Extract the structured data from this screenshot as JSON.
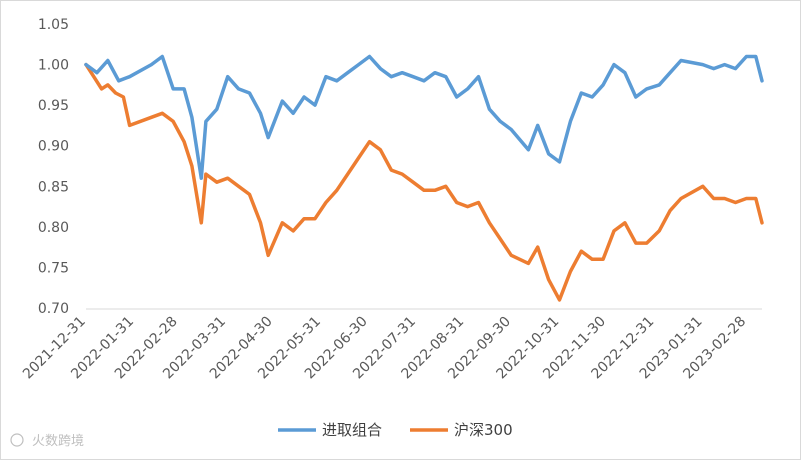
{
  "chart_data": {
    "type": "line",
    "title": "",
    "xlabel": "",
    "ylabel": "",
    "ylim": [
      0.7,
      1.05
    ],
    "y_ticks": [
      "1.05",
      "1.00",
      "0.95",
      "0.90",
      "0.85",
      "0.80",
      "0.75",
      "0.70"
    ],
    "x_ticks": [
      "2021-12-31",
      "2022-01-31",
      "2022-02-28",
      "2022-03-31",
      "2022-04-30",
      "2022-05-31",
      "2022-06-30",
      "2022-07-31",
      "2022-08-31",
      "2022-09-30",
      "2022-10-31",
      "2022-11-30",
      "2022-12-31",
      "2023-01-31",
      "2023-02-28"
    ],
    "x_range": [
      "2021-12-31",
      "2023-03-10"
    ],
    "grid": false,
    "legend_position": "bottom",
    "series": [
      {
        "name": "进取组合",
        "color": "#5B9BD5",
        "points": [
          [
            "2021-12-31",
            1.0
          ],
          [
            "2022-01-07",
            0.99
          ],
          [
            "2022-01-14",
            1.005
          ],
          [
            "2022-01-21",
            0.98
          ],
          [
            "2022-01-28",
            0.985
          ],
          [
            "2022-02-11",
            1.0
          ],
          [
            "2022-02-18",
            1.01
          ],
          [
            "2022-02-25",
            0.97
          ],
          [
            "2022-03-04",
            0.97
          ],
          [
            "2022-03-09",
            0.935
          ],
          [
            "2022-03-15",
            0.86
          ],
          [
            "2022-03-18",
            0.93
          ],
          [
            "2022-03-25",
            0.945
          ],
          [
            "2022-04-01",
            0.985
          ],
          [
            "2022-04-08",
            0.97
          ],
          [
            "2022-04-15",
            0.965
          ],
          [
            "2022-04-22",
            0.94
          ],
          [
            "2022-04-27",
            0.91
          ],
          [
            "2022-05-06",
            0.955
          ],
          [
            "2022-05-13",
            0.94
          ],
          [
            "2022-05-20",
            0.96
          ],
          [
            "2022-05-27",
            0.95
          ],
          [
            "2022-06-03",
            0.985
          ],
          [
            "2022-06-10",
            0.98
          ],
          [
            "2022-06-17",
            0.99
          ],
          [
            "2022-06-24",
            1.0
          ],
          [
            "2022-07-01",
            1.01
          ],
          [
            "2022-07-08",
            0.995
          ],
          [
            "2022-07-15",
            0.985
          ],
          [
            "2022-07-22",
            0.99
          ],
          [
            "2022-07-29",
            0.985
          ],
          [
            "2022-08-05",
            0.98
          ],
          [
            "2022-08-12",
            0.99
          ],
          [
            "2022-08-19",
            0.985
          ],
          [
            "2022-08-26",
            0.96
          ],
          [
            "2022-09-02",
            0.97
          ],
          [
            "2022-09-09",
            0.985
          ],
          [
            "2022-09-16",
            0.945
          ],
          [
            "2022-09-23",
            0.93
          ],
          [
            "2022-09-30",
            0.92
          ],
          [
            "2022-10-11",
            0.895
          ],
          [
            "2022-10-17",
            0.925
          ],
          [
            "2022-10-24",
            0.89
          ],
          [
            "2022-10-31",
            0.88
          ],
          [
            "2022-11-07",
            0.93
          ],
          [
            "2022-11-14",
            0.965
          ],
          [
            "2022-11-21",
            0.96
          ],
          [
            "2022-11-28",
            0.975
          ],
          [
            "2022-12-05",
            1.0
          ],
          [
            "2022-12-12",
            0.99
          ],
          [
            "2022-12-19",
            0.96
          ],
          [
            "2022-12-26",
            0.97
          ],
          [
            "2023-01-03",
            0.975
          ],
          [
            "2023-01-10",
            0.99
          ],
          [
            "2023-01-17",
            1.005
          ],
          [
            "2023-01-31",
            1.0
          ],
          [
            "2023-02-07",
            0.995
          ],
          [
            "2023-02-14",
            1.0
          ],
          [
            "2023-02-21",
            0.995
          ],
          [
            "2023-02-28",
            1.01
          ],
          [
            "2023-03-06",
            1.01
          ],
          [
            "2023-03-10",
            0.98
          ]
        ]
      },
      {
        "name": "沪深300",
        "color": "#ED7D31",
        "points": [
          [
            "2021-12-31",
            1.0
          ],
          [
            "2022-01-05",
            0.985
          ],
          [
            "2022-01-10",
            0.97
          ],
          [
            "2022-01-14",
            0.975
          ],
          [
            "2022-01-19",
            0.965
          ],
          [
            "2022-01-24",
            0.96
          ],
          [
            "2022-01-28",
            0.925
          ],
          [
            "2022-02-11",
            0.935
          ],
          [
            "2022-02-18",
            0.94
          ],
          [
            "2022-02-25",
            0.93
          ],
          [
            "2022-03-04",
            0.905
          ],
          [
            "2022-03-09",
            0.875
          ],
          [
            "2022-03-15",
            0.805
          ],
          [
            "2022-03-18",
            0.865
          ],
          [
            "2022-03-25",
            0.855
          ],
          [
            "2022-04-01",
            0.86
          ],
          [
            "2022-04-08",
            0.85
          ],
          [
            "2022-04-15",
            0.84
          ],
          [
            "2022-04-22",
            0.805
          ],
          [
            "2022-04-27",
            0.765
          ],
          [
            "2022-05-06",
            0.805
          ],
          [
            "2022-05-13",
            0.795
          ],
          [
            "2022-05-20",
            0.81
          ],
          [
            "2022-05-27",
            0.81
          ],
          [
            "2022-06-03",
            0.83
          ],
          [
            "2022-06-10",
            0.845
          ],
          [
            "2022-06-17",
            0.865
          ],
          [
            "2022-06-24",
            0.885
          ],
          [
            "2022-07-01",
            0.905
          ],
          [
            "2022-07-08",
            0.895
          ],
          [
            "2022-07-15",
            0.87
          ],
          [
            "2022-07-22",
            0.865
          ],
          [
            "2022-07-29",
            0.855
          ],
          [
            "2022-08-05",
            0.845
          ],
          [
            "2022-08-12",
            0.845
          ],
          [
            "2022-08-19",
            0.85
          ],
          [
            "2022-08-26",
            0.83
          ],
          [
            "2022-09-02",
            0.825
          ],
          [
            "2022-09-09",
            0.83
          ],
          [
            "2022-09-16",
            0.805
          ],
          [
            "2022-09-23",
            0.785
          ],
          [
            "2022-09-30",
            0.765
          ],
          [
            "2022-10-11",
            0.755
          ],
          [
            "2022-10-17",
            0.775
          ],
          [
            "2022-10-24",
            0.735
          ],
          [
            "2022-10-31",
            0.71
          ],
          [
            "2022-11-07",
            0.745
          ],
          [
            "2022-11-14",
            0.77
          ],
          [
            "2022-11-21",
            0.76
          ],
          [
            "2022-11-28",
            0.76
          ],
          [
            "2022-12-05",
            0.795
          ],
          [
            "2022-12-12",
            0.805
          ],
          [
            "2022-12-19",
            0.78
          ],
          [
            "2022-12-26",
            0.78
          ],
          [
            "2023-01-03",
            0.795
          ],
          [
            "2023-01-10",
            0.82
          ],
          [
            "2023-01-17",
            0.835
          ],
          [
            "2023-01-31",
            0.85
          ],
          [
            "2023-02-07",
            0.835
          ],
          [
            "2023-02-14",
            0.835
          ],
          [
            "2023-02-21",
            0.83
          ],
          [
            "2023-02-28",
            0.835
          ],
          [
            "2023-03-06",
            0.835
          ],
          [
            "2023-03-10",
            0.805
          ]
        ]
      }
    ]
  },
  "watermark": {
    "text": "火数跨境"
  }
}
